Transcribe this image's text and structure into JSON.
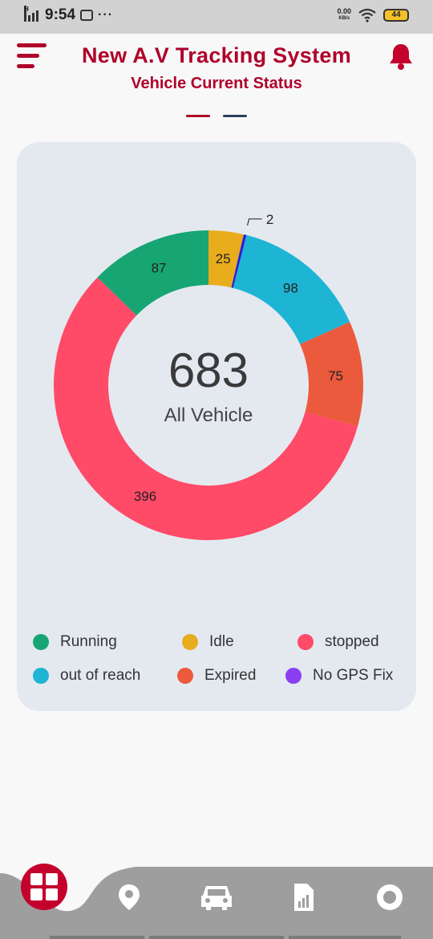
{
  "status_bar": {
    "time": "9:54",
    "network_label": "H",
    "more": "···",
    "speed_value": "0.00",
    "speed_unit": "KB/s",
    "battery": "44"
  },
  "header": {
    "title": "New  A.V Tracking System",
    "subtitle": "Vehicle Current Status"
  },
  "colors": {
    "brand": "#b0002a",
    "card_bg": "#e4e9f0",
    "running": "#17a673",
    "idle": "#e9ac1c",
    "stopped": "#ff4a68",
    "out_of_reach": "#1eb4d4",
    "expired": "#eb5a3c",
    "no_gps_fix": "#8a3ff0"
  },
  "chart_data": {
    "type": "pie",
    "total": "683",
    "center_label": "All Vehicle",
    "slices": [
      {
        "name": "Idle",
        "value": 25,
        "color": "#e9ac1c"
      },
      {
        "name": "No GPS Fix",
        "value": 2,
        "color": "#2a1fd8"
      },
      {
        "name": "out of reach",
        "value": 98,
        "color": "#1eb4d4"
      },
      {
        "name": "Expired",
        "value": 75,
        "color": "#eb5a3c"
      },
      {
        "name": "stopped",
        "value": 396,
        "color": "#ff4a68"
      },
      {
        "name": "Running",
        "value": 87,
        "color": "#17a673"
      }
    ]
  },
  "legend": [
    {
      "label": "Running",
      "color": "#17a673"
    },
    {
      "label": "Idle",
      "color": "#e9ac1c"
    },
    {
      "label": "stopped",
      "color": "#ff4a68"
    },
    {
      "label": "out of reach",
      "color": "#1eb4d4"
    },
    {
      "label": "Expired",
      "color": "#eb5a3c"
    },
    {
      "label": "No GPS Fix",
      "color": "#8a3ff0"
    }
  ],
  "nav": {
    "items": [
      {
        "icon": "dashboard-grid-icon",
        "active": true
      },
      {
        "icon": "location-pin-icon"
      },
      {
        "icon": "car-icon"
      },
      {
        "icon": "report-document-icon"
      },
      {
        "icon": "circle-record-icon"
      }
    ]
  }
}
